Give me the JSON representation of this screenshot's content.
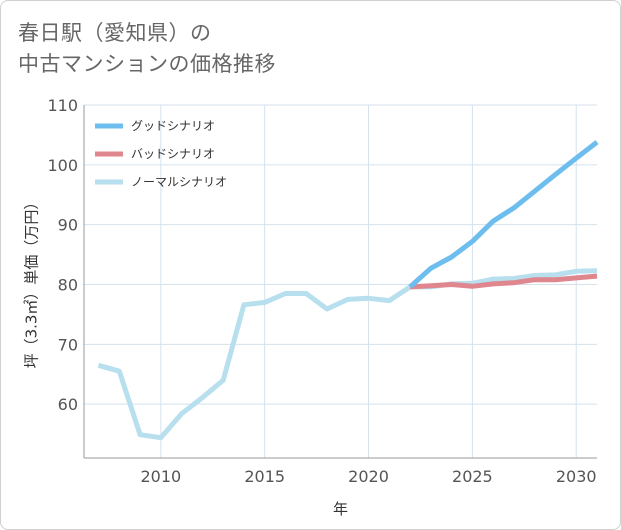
{
  "title": {
    "line1": "春日駅（愛知県）の",
    "line2": "中古マンションの価格推移"
  },
  "colors": {
    "good": "#6dbdef",
    "bad": "#e0868e",
    "normal": "#b7dfee",
    "grid": "#d4e2ec",
    "axis": "#999999"
  },
  "chart_data": {
    "type": "line",
    "title": "春日駅（愛知県）の中古マンションの価格推移",
    "xlabel": "年",
    "ylabel": "坪（3.3㎡）単価（万円）",
    "xlim": [
      2006.3,
      2031
    ],
    "ylim": [
      51,
      110
    ],
    "xticks": [
      2010,
      2015,
      2020,
      2025,
      2030
    ],
    "yticks": [
      60,
      70,
      80,
      90,
      100,
      110
    ],
    "grid": true,
    "legend_position": "top-left",
    "series": [
      {
        "key": "good",
        "name": "グッドシナリオ",
        "x": [
          2022,
          2023,
          2024,
          2025,
          2026,
          2027,
          2028,
          2029,
          2030,
          2031
        ],
        "y": [
          79.6,
          82.7,
          84.6,
          87.2,
          90.6,
          92.8,
          95.6,
          98.4,
          101.1,
          103.8
        ]
      },
      {
        "key": "bad",
        "name": "バッドシナリオ",
        "x": [
          2022,
          2023,
          2024,
          2025,
          2026,
          2027,
          2028,
          2029,
          2030,
          2031
        ],
        "y": [
          79.6,
          79.8,
          80.0,
          79.7,
          80.1,
          80.3,
          80.8,
          80.8,
          81.1,
          81.4
        ]
      },
      {
        "key": "normal",
        "name": "ノーマルシナリオ",
        "x": [
          2007,
          2008,
          2009,
          2010,
          2011,
          2012,
          2013,
          2014,
          2015,
          2016,
          2017,
          2018,
          2019,
          2020,
          2021,
          2022,
          2023,
          2024,
          2025,
          2026,
          2027,
          2028,
          2029,
          2030,
          2031
        ],
        "y": [
          66.5,
          65.5,
          54.9,
          54.4,
          58.4,
          61.1,
          64.0,
          76.6,
          77.0,
          78.5,
          78.5,
          75.9,
          77.5,
          77.7,
          77.3,
          79.6,
          79.6,
          80.1,
          80.2,
          80.9,
          81.0,
          81.5,
          81.6,
          82.2,
          82.3
        ]
      }
    ]
  }
}
